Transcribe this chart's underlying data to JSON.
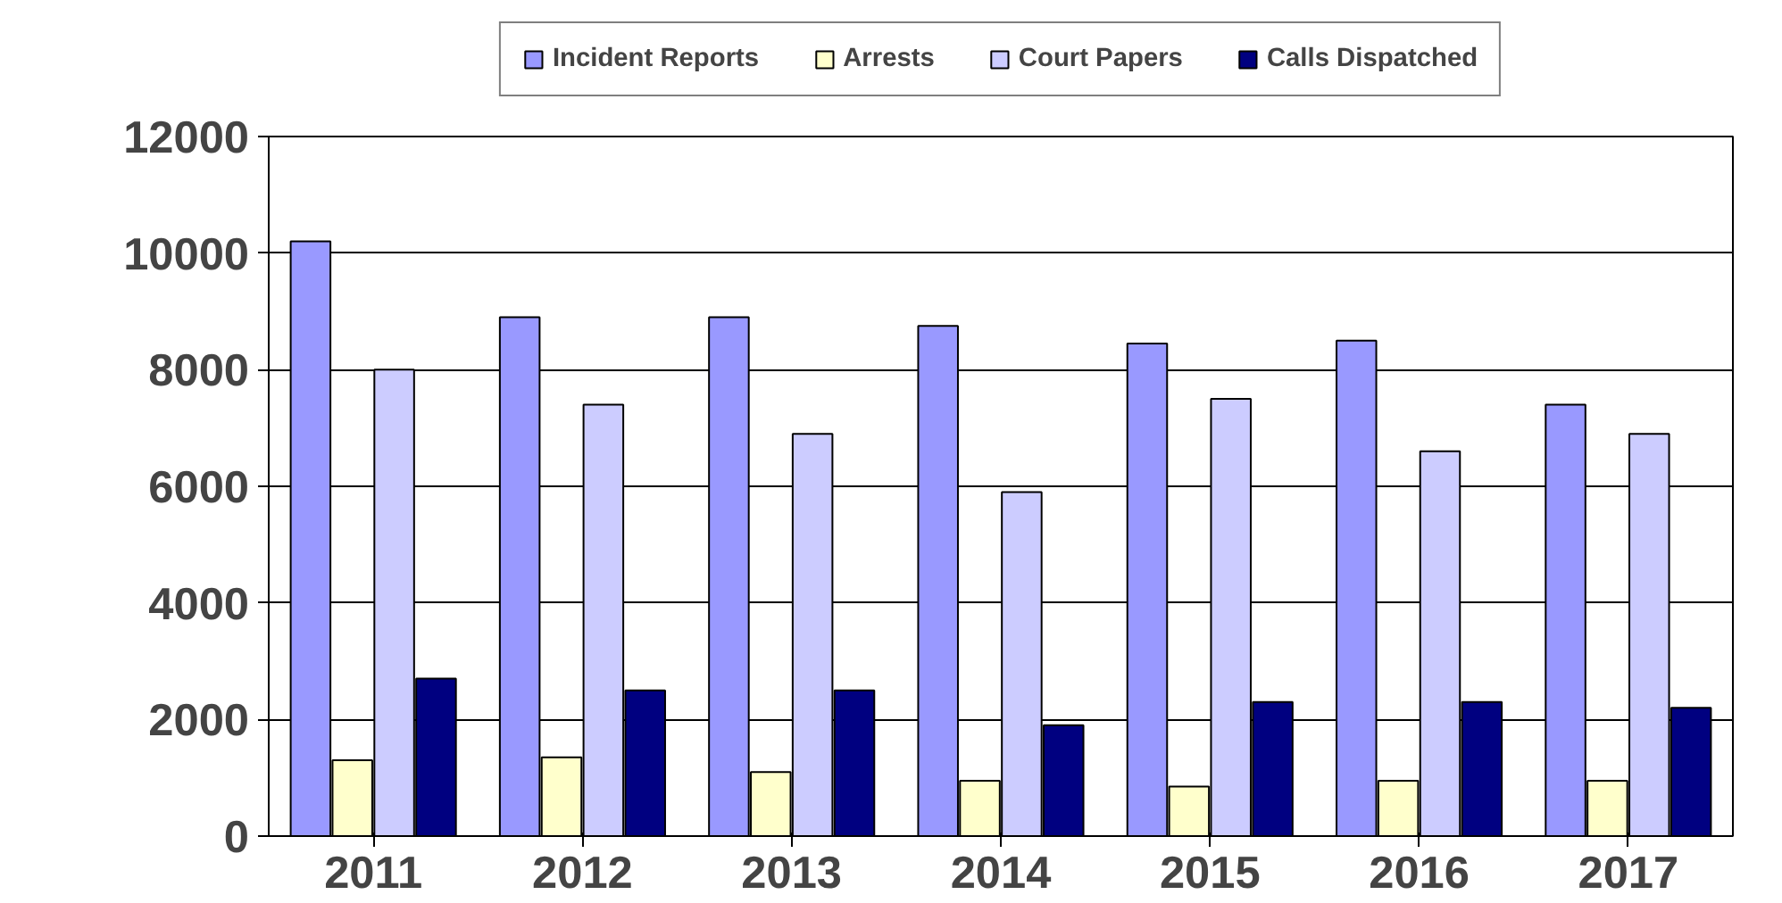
{
  "chart_data": {
    "type": "bar",
    "categories": [
      "2011",
      "2012",
      "2013",
      "2014",
      "2015",
      "2016",
      "2017"
    ],
    "series": [
      {
        "name": "Incident Reports",
        "color": "#9999ff",
        "values": [
          10200,
          8900,
          8900,
          8750,
          8450,
          8500,
          7400
        ]
      },
      {
        "name": "Arrests",
        "color": "#ffffcc",
        "values": [
          1300,
          1350,
          1100,
          950,
          850,
          950,
          950
        ]
      },
      {
        "name": "Court Papers",
        "color": "#ccccff",
        "values": [
          8000,
          7400,
          6900,
          5900,
          7500,
          6600,
          6900
        ]
      },
      {
        "name": "Calls Dispatched",
        "color": "#000080",
        "values": [
          2700,
          2500,
          2500,
          1900,
          2300,
          2300,
          2200
        ]
      }
    ],
    "ylim": [
      0,
      12000
    ],
    "yticks": [
      0,
      2000,
      4000,
      6000,
      8000,
      10000,
      12000
    ],
    "grid": "y",
    "legend": "top"
  }
}
